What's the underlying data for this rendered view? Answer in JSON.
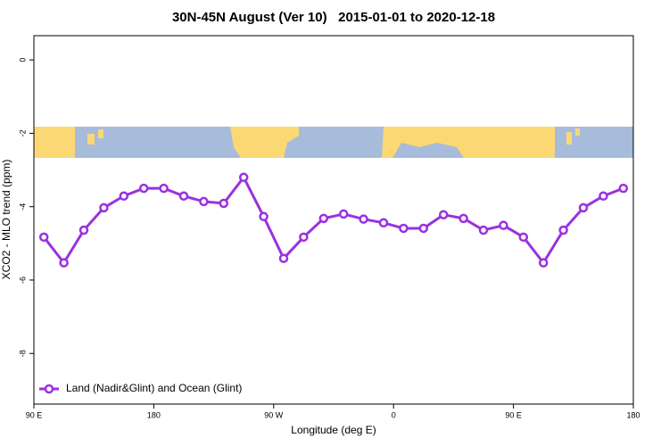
{
  "chart_data": {
    "type": "line",
    "title": "30N-45N August (Ver 10)   2015-01-01 to 2020-12-18",
    "x_label": "Longitude (deg E)",
    "y_label": "XCO2 - MLO trend (ppm)",
    "x": [
      97.5,
      112.5,
      127.5,
      142.5,
      157.5,
      172.5,
      187.5,
      202.5,
      217.5,
      232.5,
      247.5,
      262.5,
      277.5,
      292.5,
      307.5,
      322.5,
      337.5,
      352.5,
      367.5,
      382.5,
      397.5,
      412.5,
      427.5,
      442.5,
      457.5,
      472.5,
      487.5,
      502.5,
      517.5,
      532.5
    ],
    "series": [
      {
        "name": "Land (Nadir&Glint) and Ocean (Glint)",
        "color": "#9b30e0",
        "values": [
          -4.83,
          -5.53,
          -4.64,
          -4.03,
          -3.71,
          -3.5,
          -3.5,
          -3.71,
          -3.86,
          -3.91,
          -3.2,
          -4.27,
          -5.41,
          -4.83,
          -4.32,
          -4.2,
          -4.34,
          -4.44,
          -4.59,
          -4.59,
          -4.22,
          -4.32,
          -4.64,
          -4.51,
          -4.83,
          -5.53,
          -4.64,
          -4.03,
          -3.71,
          -3.5
        ]
      }
    ],
    "xlim": [
      90,
      540
    ],
    "ylim": [
      -9.38,
      0.66
    ],
    "xticks": [
      {
        "value": 90,
        "label": "90 E"
      },
      {
        "value": 180,
        "label": "180"
      },
      {
        "value": 270,
        "label": "90 W"
      },
      {
        "value": 360,
        "label": "0"
      },
      {
        "value": 450,
        "label": "90 E"
      },
      {
        "value": 540,
        "label": "180"
      }
    ],
    "yticks": [
      0,
      -2,
      -4,
      -6,
      -8
    ],
    "legend": "bottom-left"
  }
}
